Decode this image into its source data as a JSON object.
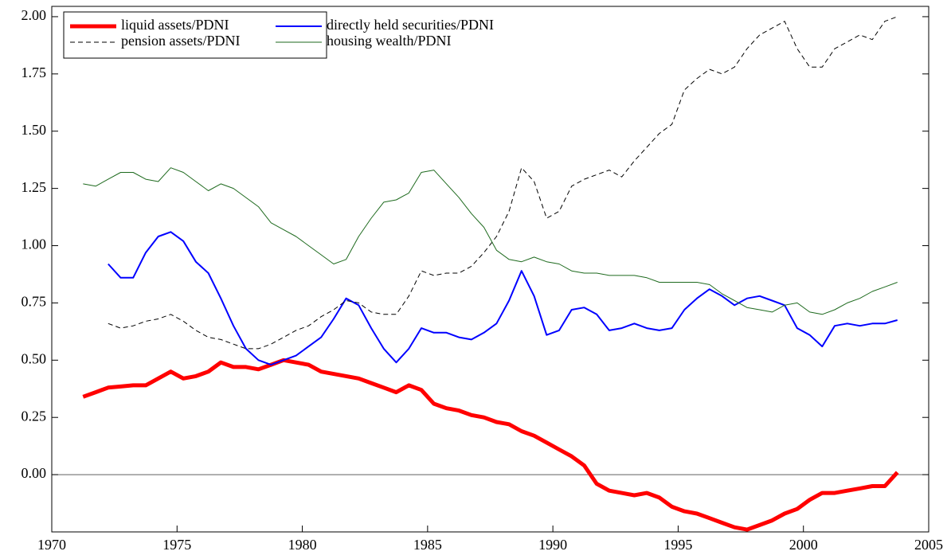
{
  "chart_data": {
    "type": "line",
    "x": [
      1971.25,
      1971.75,
      1972.25,
      1972.75,
      1973.25,
      1973.75,
      1974.25,
      1974.75,
      1975.25,
      1975.75,
      1976.25,
      1976.75,
      1977.25,
      1977.75,
      1978.25,
      1978.75,
      1979.25,
      1979.75,
      1980.25,
      1980.75,
      1981.25,
      1981.75,
      1982.25,
      1982.75,
      1983.25,
      1983.75,
      1984.25,
      1984.75,
      1985.25,
      1985.75,
      1986.25,
      1986.75,
      1987.25,
      1987.75,
      1988.25,
      1988.75,
      1989.25,
      1989.75,
      1990.25,
      1990.75,
      1991.25,
      1991.75,
      1992.25,
      1992.75,
      1993.25,
      1993.75,
      1994.25,
      1994.75,
      1995.25,
      1995.75,
      1996.25,
      1996.75,
      1997.25,
      1997.75,
      1998.25,
      1998.75,
      1999.25,
      1999.75,
      2000.25,
      2000.75,
      2001.25,
      2001.75,
      2002.25,
      2002.75,
      2003.25,
      2003.75
    ],
    "series": [
      {
        "name": "liquid assets/PDNI",
        "color": "#ff0000",
        "linestyle": "solid",
        "linewidth": 5,
        "values": [
          0.34,
          0.36,
          0.38,
          0.385,
          0.39,
          0.39,
          0.42,
          0.45,
          0.42,
          0.43,
          0.45,
          0.49,
          0.47,
          0.47,
          0.46,
          0.48,
          0.5,
          0.49,
          0.48,
          0.45,
          0.44,
          0.43,
          0.42,
          0.4,
          0.38,
          0.36,
          0.39,
          0.37,
          0.31,
          0.29,
          0.28,
          0.26,
          0.25,
          0.23,
          0.22,
          0.19,
          0.17,
          0.14,
          0.11,
          0.08,
          0.04,
          -0.04,
          -0.07,
          -0.08,
          -0.09,
          -0.08,
          -0.1,
          -0.14,
          -0.16,
          -0.17,
          -0.19,
          -0.21,
          -0.23,
          -0.24,
          -0.22,
          -0.2,
          -0.17,
          -0.15,
          -0.11,
          -0.08,
          -0.08,
          -0.07,
          -0.06,
          -0.05,
          -0.05,
          0.01
        ]
      },
      {
        "name": "directly held securities/PDNI",
        "color": "#0000ff",
        "linestyle": "solid",
        "linewidth": 2,
        "values": [
          null,
          null,
          0.92,
          0.86,
          0.86,
          0.97,
          1.04,
          1.06,
          1.02,
          0.93,
          0.88,
          0.77,
          0.65,
          0.55,
          0.5,
          0.48,
          0.5,
          0.52,
          0.56,
          0.6,
          0.68,
          0.77,
          0.74,
          0.64,
          0.55,
          0.49,
          0.55,
          0.64,
          0.62,
          0.62,
          0.6,
          0.59,
          0.62,
          0.66,
          0.76,
          0.89,
          0.78,
          0.61,
          0.63,
          0.72,
          0.73,
          0.7,
          0.63,
          0.64,
          0.66,
          0.64,
          0.63,
          0.64,
          0.72,
          0.77,
          0.81,
          0.78,
          0.74,
          0.77,
          0.78,
          0.76,
          0.74,
          0.64,
          0.61,
          0.56,
          0.65,
          0.66,
          0.65,
          0.66,
          0.66,
          0.675
        ]
      },
      {
        "name": "pension assets/PDNI",
        "color": "#000000",
        "linestyle": "dashed",
        "linewidth": 1,
        "values": [
          null,
          null,
          0.66,
          0.64,
          0.65,
          0.67,
          0.68,
          0.7,
          0.67,
          0.63,
          0.6,
          0.59,
          0.57,
          0.55,
          0.55,
          0.57,
          0.6,
          0.63,
          0.65,
          0.69,
          0.72,
          0.76,
          0.75,
          0.71,
          0.7,
          0.7,
          0.78,
          0.89,
          0.87,
          0.88,
          0.88,
          0.91,
          0.97,
          1.04,
          1.15,
          1.34,
          1.28,
          1.12,
          1.15,
          1.26,
          1.29,
          1.31,
          1.33,
          1.3,
          1.37,
          1.43,
          1.49,
          1.53,
          1.68,
          1.73,
          1.77,
          1.75,
          1.78,
          1.86,
          1.92,
          1.95,
          1.98,
          1.86,
          1.78,
          1.78,
          1.86,
          1.89,
          1.92,
          1.9,
          1.98,
          2.0
        ]
      },
      {
        "name": "housing wealth/PDNI",
        "color": "#1e6a1e",
        "linestyle": "solid",
        "linewidth": 1,
        "values": [
          1.27,
          1.26,
          1.29,
          1.32,
          1.32,
          1.29,
          1.28,
          1.34,
          1.32,
          1.28,
          1.24,
          1.27,
          1.25,
          1.21,
          1.17,
          1.1,
          1.07,
          1.04,
          1.0,
          0.96,
          0.92,
          0.94,
          1.04,
          1.12,
          1.19,
          1.2,
          1.23,
          1.32,
          1.33,
          1.27,
          1.21,
          1.14,
          1.08,
          0.98,
          0.94,
          0.93,
          0.95,
          0.93,
          0.92,
          0.89,
          0.88,
          0.88,
          0.87,
          0.87,
          0.87,
          0.86,
          0.84,
          0.84,
          0.84,
          0.84,
          0.83,
          0.79,
          0.76,
          0.73,
          0.72,
          0.71,
          0.74,
          0.75,
          0.71,
          0.7,
          0.72,
          0.75,
          0.77,
          0.8,
          0.82,
          0.84
        ]
      }
    ],
    "xlim": [
      1970,
      2005
    ],
    "xticks": [
      1970,
      1975,
      1980,
      1985,
      1990,
      1995,
      2000,
      2005
    ],
    "ylim": [
      -0.25,
      2.045
    ],
    "yticks": [
      {
        "value": 0,
        "label": "0.00"
      },
      0.25,
      {
        "value": 0.5,
        "label": "0.50"
      },
      0.75,
      {
        "value": 1,
        "label": "1.00"
      },
      1.25,
      {
        "value": 1.5,
        "label": "1.50"
      },
      1.75,
      {
        "value": 2,
        "label": "2.00"
      }
    ],
    "zero_line": true,
    "legend": "upper left"
  }
}
